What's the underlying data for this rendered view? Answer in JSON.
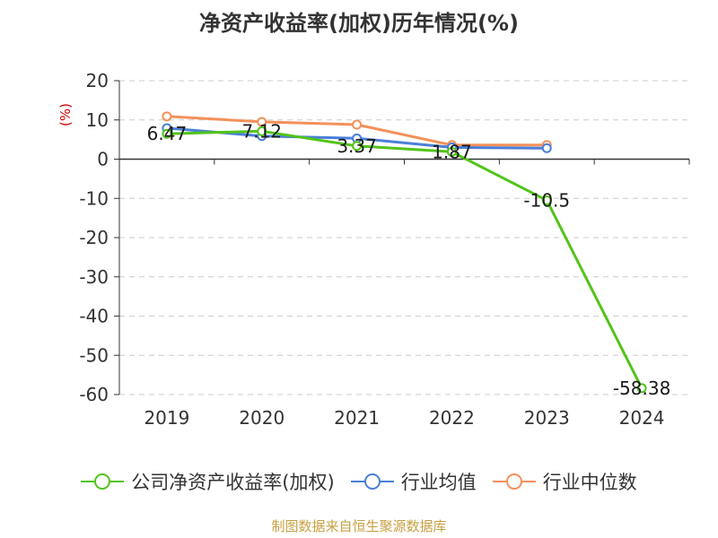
{
  "title": "净资产收益率(加权)历年情况(%)",
  "unit": "(%)",
  "source": "制图数据来自恒生聚源数据库",
  "chart_data": {
    "type": "line",
    "categories": [
      "2019",
      "2020",
      "2021",
      "2022",
      "2023",
      "2024"
    ],
    "ylim": [
      -60,
      20
    ],
    "yticks": [
      20,
      10,
      0,
      -10,
      -20,
      -30,
      -40,
      -50,
      -60
    ],
    "grid": true,
    "legend_placement": "bottom",
    "series": [
      {
        "name": "公司净资产收益率(加权)",
        "color": "#52c41a",
        "values": [
          6.47,
          7.12,
          3.37,
          1.87,
          -10.5,
          -58.38
        ],
        "labels": [
          "6.47",
          "7.12",
          "3.37",
          "1.87",
          "-10.5",
          "-58.38"
        ]
      },
      {
        "name": "行业均值",
        "color": "#4a7fd8",
        "values": [
          7.9,
          5.9,
          5.3,
          3.0,
          2.8,
          null
        ]
      },
      {
        "name": "行业中位数",
        "color": "#f4905a",
        "values": [
          10.9,
          9.5,
          8.8,
          3.6,
          3.6,
          null
        ]
      }
    ]
  }
}
